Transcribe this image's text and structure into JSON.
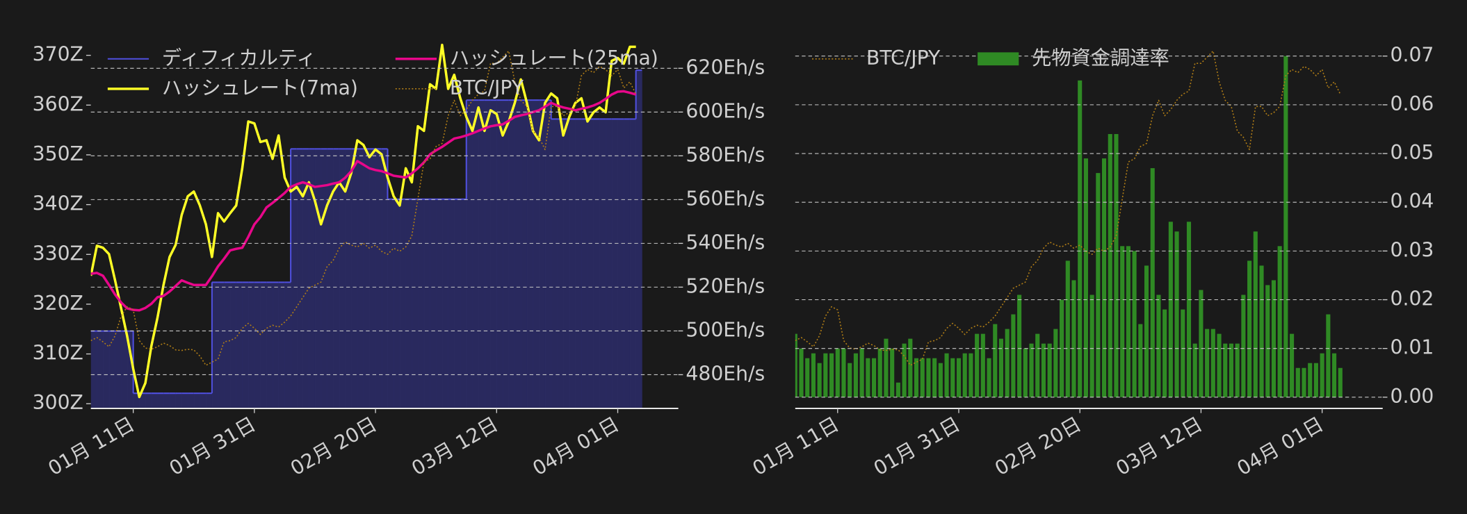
{
  "chart_data": [
    {
      "type": "line",
      "x": [
        "01-04",
        "01-05",
        "01-06",
        "01-07",
        "01-08",
        "01-09",
        "01-10",
        "01-11",
        "01-12",
        "01-13",
        "01-14",
        "01-15",
        "01-16",
        "01-17",
        "01-18",
        "01-19",
        "01-20",
        "01-21",
        "01-22",
        "01-23",
        "01-24",
        "01-25",
        "01-26",
        "01-27",
        "01-28",
        "01-29",
        "01-30",
        "01-31",
        "02-01",
        "02-02",
        "02-03",
        "02-04",
        "02-05",
        "02-06",
        "02-07",
        "02-08",
        "02-09",
        "02-10",
        "02-11",
        "02-12",
        "02-13",
        "02-14",
        "02-15",
        "02-16",
        "02-17",
        "02-18",
        "02-19",
        "02-20",
        "02-21",
        "02-22",
        "02-23",
        "02-24",
        "02-25",
        "02-26",
        "02-27",
        "02-28",
        "03-01",
        "03-02",
        "03-03",
        "03-04",
        "03-05",
        "03-06",
        "03-07",
        "03-08",
        "03-09",
        "03-10",
        "03-11",
        "03-12",
        "03-13",
        "03-14",
        "03-15",
        "03-16",
        "03-17",
        "03-18",
        "03-19",
        "03-20",
        "03-21",
        "03-22",
        "03-23",
        "03-24",
        "03-25",
        "03-26",
        "03-27",
        "03-28",
        "03-29",
        "03-30",
        "03-31",
        "04-01",
        "04-02",
        "04-03",
        "04-04"
      ],
      "xlim": [
        "01-04",
        "04-11"
      ],
      "xticks": [
        {
          "value": "01-11",
          "label": "01月 11日"
        },
        {
          "value": "01-31",
          "label": "01月 31日"
        },
        {
          "value": "02-20",
          "label": "02月 20日"
        },
        {
          "value": "03-12",
          "label": "03月 12日"
        },
        {
          "value": "04-01",
          "label": "04月 01日"
        }
      ],
      "ylim": [
        299.06,
        372.1
      ],
      "yticks": [
        {
          "value": 300,
          "label": "300Z"
        },
        {
          "value": 310,
          "label": "310Z"
        },
        {
          "value": 320,
          "label": "320Z"
        },
        {
          "value": 330,
          "label": "330Z"
        },
        {
          "value": 340,
          "label": "340Z"
        },
        {
          "value": 350,
          "label": "350Z"
        },
        {
          "value": 360,
          "label": "360Z"
        },
        {
          "value": 370,
          "label": "370Z"
        }
      ],
      "y2lim": [
        464.6,
        630.7
      ],
      "y2ticks": [
        {
          "value": 480,
          "label": "480Eh/s"
        },
        {
          "value": 500,
          "label": "500Eh/s"
        },
        {
          "value": 520,
          "label": "520Eh/s"
        },
        {
          "value": 540,
          "label": "540Eh/s"
        },
        {
          "value": 560,
          "label": "560Eh/s"
        },
        {
          "value": 580,
          "label": "580Eh/s"
        },
        {
          "value": 600,
          "label": "600Eh/s"
        },
        {
          "value": 620,
          "label": "620Eh/s"
        }
      ],
      "y3lim": [
        5100000,
        11000000
      ],
      "grid": "y2",
      "legend": "upper left",
      "legend_columns": 2,
      "series": [
        {
          "name": "ディフィカルティ",
          "type": "step",
          "color": "#5050e0",
          "fill_color": "#2b2b66",
          "values": [
            314.6,
            314.6,
            314.6,
            314.6,
            314.6,
            314.6,
            314.6,
            302.1,
            302.1,
            302.1,
            302.1,
            302.1,
            302.1,
            302.1,
            302.1,
            302.1,
            302.1,
            302.1,
            302.1,
            302.1,
            324.4,
            324.4,
            324.4,
            324.4,
            324.4,
            324.4,
            324.4,
            324.4,
            324.4,
            324.4,
            324.4,
            324.4,
            324.4,
            351.2,
            351.2,
            351.2,
            351.2,
            351.2,
            351.2,
            351.2,
            351.2,
            351.2,
            351.2,
            351.2,
            351.2,
            351.2,
            351.2,
            351.2,
            351.2,
            341.1,
            341.1,
            341.1,
            341.1,
            341.1,
            341.1,
            341.1,
            341.1,
            341.1,
            341.1,
            341.1,
            341.1,
            341.1,
            361,
            361,
            361,
            361,
            361,
            361,
            361,
            361,
            361,
            361,
            361,
            361,
            361,
            361,
            357.2,
            357.2,
            357.2,
            357.2,
            357.2,
            357.2,
            357.2,
            357.2,
            357.2,
            357.2,
            357.2,
            357.2,
            357.2,
            357.2,
            367
          ]
        },
        {
          "name": "ハッシュレート(7ma)",
          "type": "line",
          "axis": "y2",
          "color": "#ffff26",
          "values": [
            525.2,
            538.9,
            538,
            535.1,
            523.1,
            510.3,
            497.5,
            482.6,
            469.8,
            476.2,
            493.2,
            506,
            521,
            533.8,
            539.3,
            553,
            561.5,
            563.7,
            557.3,
            548.7,
            533.8,
            553.8,
            550,
            553.8,
            557.3,
            574.3,
            595.7,
            594.8,
            586.3,
            587.1,
            578.6,
            589.3,
            570.1,
            563.7,
            565.8,
            561.5,
            567.9,
            559.4,
            548.7,
            557.3,
            563.7,
            567.9,
            563.7,
            572.2,
            587.1,
            585,
            579.4,
            582.9,
            580.7,
            570.1,
            561.5,
            557.3,
            574.3,
            567.9,
            593.5,
            591.4,
            612.7,
            610.6,
            630.7,
            610.6,
            617,
            606.3,
            597.8,
            591.4,
            602.1,
            591.4,
            600.8,
            599.1,
            589.3,
            595.7,
            604.2,
            614.9,
            604.2,
            591.4,
            587.1,
            604.2,
            608.5,
            606.3,
            589.3,
            597.8,
            604.2,
            606.3,
            595.7,
            599.9,
            602.1,
            599.9,
            623.4,
            624.7,
            622.1,
            629.8,
            629.8
          ]
        },
        {
          "name": "ハッシュレート(25ma)",
          "type": "line",
          "axis": "y2",
          "color": "#e8078a",
          "values": [
            526.1,
            526.5,
            525.2,
            521,
            516.6,
            513,
            510.3,
            509.6,
            509.4,
            510.5,
            512.4,
            515.4,
            516,
            518,
            520.5,
            523.1,
            522,
            521,
            521,
            521,
            525,
            529.5,
            533,
            536.8,
            537.5,
            538,
            543,
            548.7,
            552,
            556.4,
            558.5,
            560.7,
            563,
            565.8,
            567,
            567.9,
            567,
            565.8,
            566.2,
            566.6,
            567.3,
            567.9,
            570,
            573,
            577.6,
            576,
            574.3,
            573.5,
            573,
            572,
            570.9,
            570.5,
            570.1,
            572,
            574.3,
            577,
            580.7,
            582.5,
            584.1,
            586,
            587.9,
            588.5,
            589.3,
            590.3,
            591.4,
            592.5,
            593.5,
            594,
            594.4,
            596,
            597.8,
            598.5,
            599.1,
            600,
            600.8,
            602.5,
            604.2,
            603,
            602.1,
            601.5,
            600.8,
            601.5,
            602.1,
            603,
            604.2,
            606,
            608,
            609.3,
            609.5,
            608.8,
            608
          ]
        },
        {
          "name": "BTC/JPY",
          "type": "line",
          "axis": "y3",
          "linestyle": "dotted",
          "color": "#b07d16",
          "values": [
            6200000,
            6250000,
            6180000,
            6100000,
            6280000,
            6600000,
            6750000,
            6700000,
            6200000,
            6080000,
            6060000,
            6100000,
            6160000,
            6120000,
            6050000,
            6040000,
            6060000,
            6050000,
            5950000,
            5800000,
            5850000,
            5900000,
            6180000,
            6200000,
            6250000,
            6400000,
            6480000,
            6400000,
            6300000,
            6400000,
            6450000,
            6420000,
            6500000,
            6600000,
            6750000,
            6900000,
            7050000,
            7100000,
            7150000,
            7400000,
            7500000,
            7700000,
            7800000,
            7750000,
            7720000,
            7780000,
            7700000,
            7750000,
            7650000,
            7600000,
            7700000,
            7650000,
            7720000,
            7900000,
            8500000,
            9100000,
            9150000,
            9350000,
            9400000,
            9850000,
            10100000,
            9850000,
            9950000,
            10100000,
            10200000,
            10250000,
            10700000,
            10700000,
            10800000,
            10900000,
            10400000,
            10100000,
            10000000,
            9600000,
            9500000,
            9300000,
            10000000,
            10000000,
            9850000,
            9900000,
            10000000,
            10500000,
            10600000,
            10550000,
            10650000,
            10600000,
            10500000,
            10600000,
            10300000,
            10400000,
            10200000
          ]
        }
      ]
    },
    {
      "type": "bar",
      "x": [
        "01-04",
        "01-05",
        "01-06",
        "01-07",
        "01-08",
        "01-09",
        "01-10",
        "01-11",
        "01-12",
        "01-13",
        "01-14",
        "01-15",
        "01-16",
        "01-17",
        "01-18",
        "01-19",
        "01-20",
        "01-21",
        "01-22",
        "01-23",
        "01-24",
        "01-25",
        "01-26",
        "01-27",
        "01-28",
        "01-29",
        "01-30",
        "01-31",
        "02-01",
        "02-02",
        "02-03",
        "02-04",
        "02-05",
        "02-06",
        "02-07",
        "02-08",
        "02-09",
        "02-10",
        "02-11",
        "02-12",
        "02-13",
        "02-14",
        "02-15",
        "02-16",
        "02-17",
        "02-18",
        "02-19",
        "02-20",
        "02-21",
        "02-22",
        "02-23",
        "02-24",
        "02-25",
        "02-26",
        "02-27",
        "02-28",
        "03-01",
        "03-02",
        "03-03",
        "03-04",
        "03-05",
        "03-06",
        "03-07",
        "03-08",
        "03-09",
        "03-10",
        "03-11",
        "03-12",
        "03-13",
        "03-14",
        "03-15",
        "03-16",
        "03-17",
        "03-18",
        "03-19",
        "03-20",
        "03-21",
        "03-22",
        "03-23",
        "03-24",
        "03-25",
        "03-26",
        "03-27",
        "03-28",
        "03-29",
        "03-30",
        "03-31",
        "04-01",
        "04-02",
        "04-03",
        "04-04"
      ],
      "xlim": [
        "01-04",
        "04-11"
      ],
      "xticks": [
        {
          "value": "01-11",
          "label": "01月 11日"
        },
        {
          "value": "01-31",
          "label": "01月 31日"
        },
        {
          "value": "02-20",
          "label": "02月 20日"
        },
        {
          "value": "03-12",
          "label": "03月 12日"
        },
        {
          "value": "04-01",
          "label": "04月 01日"
        }
      ],
      "y2lim": [
        -0.0023,
        0.0723
      ],
      "y2ticks": [
        {
          "value": 0,
          "label": "0.00"
        },
        {
          "value": 0.01,
          "label": "0.01"
        },
        {
          "value": 0.02,
          "label": "0.02"
        },
        {
          "value": 0.03,
          "label": "0.03"
        },
        {
          "value": 0.04,
          "label": "0.04"
        },
        {
          "value": 0.05,
          "label": "0.05"
        },
        {
          "value": 0.06,
          "label": "0.06"
        },
        {
          "value": 0.07,
          "label": "0.07"
        }
      ],
      "y3lim": [
        5100000,
        11000000
      ],
      "grid": "y2",
      "legend": "upper left",
      "legend_columns": 2,
      "series": [
        {
          "name": "BTC/JPY",
          "type": "line",
          "axis": "y3",
          "linestyle": "dotted",
          "color": "#b07d16",
          "values": [
            6200000,
            6250000,
            6180000,
            6100000,
            6280000,
            6600000,
            6750000,
            6700000,
            6200000,
            6080000,
            6060000,
            6100000,
            6160000,
            6120000,
            6050000,
            6040000,
            6060000,
            6050000,
            5950000,
            5800000,
            5850000,
            5900000,
            6180000,
            6200000,
            6250000,
            6400000,
            6480000,
            6400000,
            6300000,
            6400000,
            6450000,
            6420000,
            6500000,
            6600000,
            6750000,
            6900000,
            7050000,
            7100000,
            7150000,
            7400000,
            7500000,
            7700000,
            7800000,
            7750000,
            7720000,
            7780000,
            7700000,
            7750000,
            7650000,
            7600000,
            7700000,
            7650000,
            7720000,
            7900000,
            8500000,
            9100000,
            9150000,
            9350000,
            9400000,
            9850000,
            10100000,
            9850000,
            9950000,
            10100000,
            10200000,
            10250000,
            10700000,
            10700000,
            10800000,
            10900000,
            10400000,
            10100000,
            10000000,
            9600000,
            9500000,
            9300000,
            10000000,
            10000000,
            9850000,
            9900000,
            10000000,
            10500000,
            10600000,
            10550000,
            10650000,
            10600000,
            10500000,
            10600000,
            10300000,
            10400000,
            10200000
          ]
        },
        {
          "name": "先物資金調達率",
          "type": "bar",
          "axis": "y2",
          "color": "#2f8a24",
          "values": [
            0.013,
            0.01,
            0.008,
            0.009,
            0.007,
            0.009,
            0.009,
            0.01,
            0.01,
            0.007,
            0.009,
            0.01,
            0.008,
            0.008,
            0.01,
            0.012,
            0.01,
            0.003,
            0.011,
            0.012,
            0.008,
            0.008,
            0.008,
            0.008,
            0.007,
            0.009,
            0.008,
            0.008,
            0.009,
            0.009,
            0.013,
            0.013,
            0.008,
            0.015,
            0.012,
            0.014,
            0.017,
            0.021,
            0.01,
            0.011,
            0.013,
            0.011,
            0.011,
            0.014,
            0.02,
            0.028,
            0.024,
            0.065,
            0.049,
            0.021,
            0.046,
            0.049,
            0.054,
            0.054,
            0.031,
            0.031,
            0.03,
            0.015,
            0.027,
            0.047,
            0.021,
            0.018,
            0.036,
            0.034,
            0.018,
            0.036,
            0.011,
            0.022,
            0.014,
            0.014,
            0.013,
            0.011,
            0.011,
            0.011,
            0.021,
            0.028,
            0.034,
            0.027,
            0.023,
            0.024,
            0.031,
            0.07,
            0.013,
            0.006,
            0.006,
            0.007,
            0.007,
            0.009,
            0.017,
            0.009,
            0.006
          ]
        }
      ]
    }
  ]
}
